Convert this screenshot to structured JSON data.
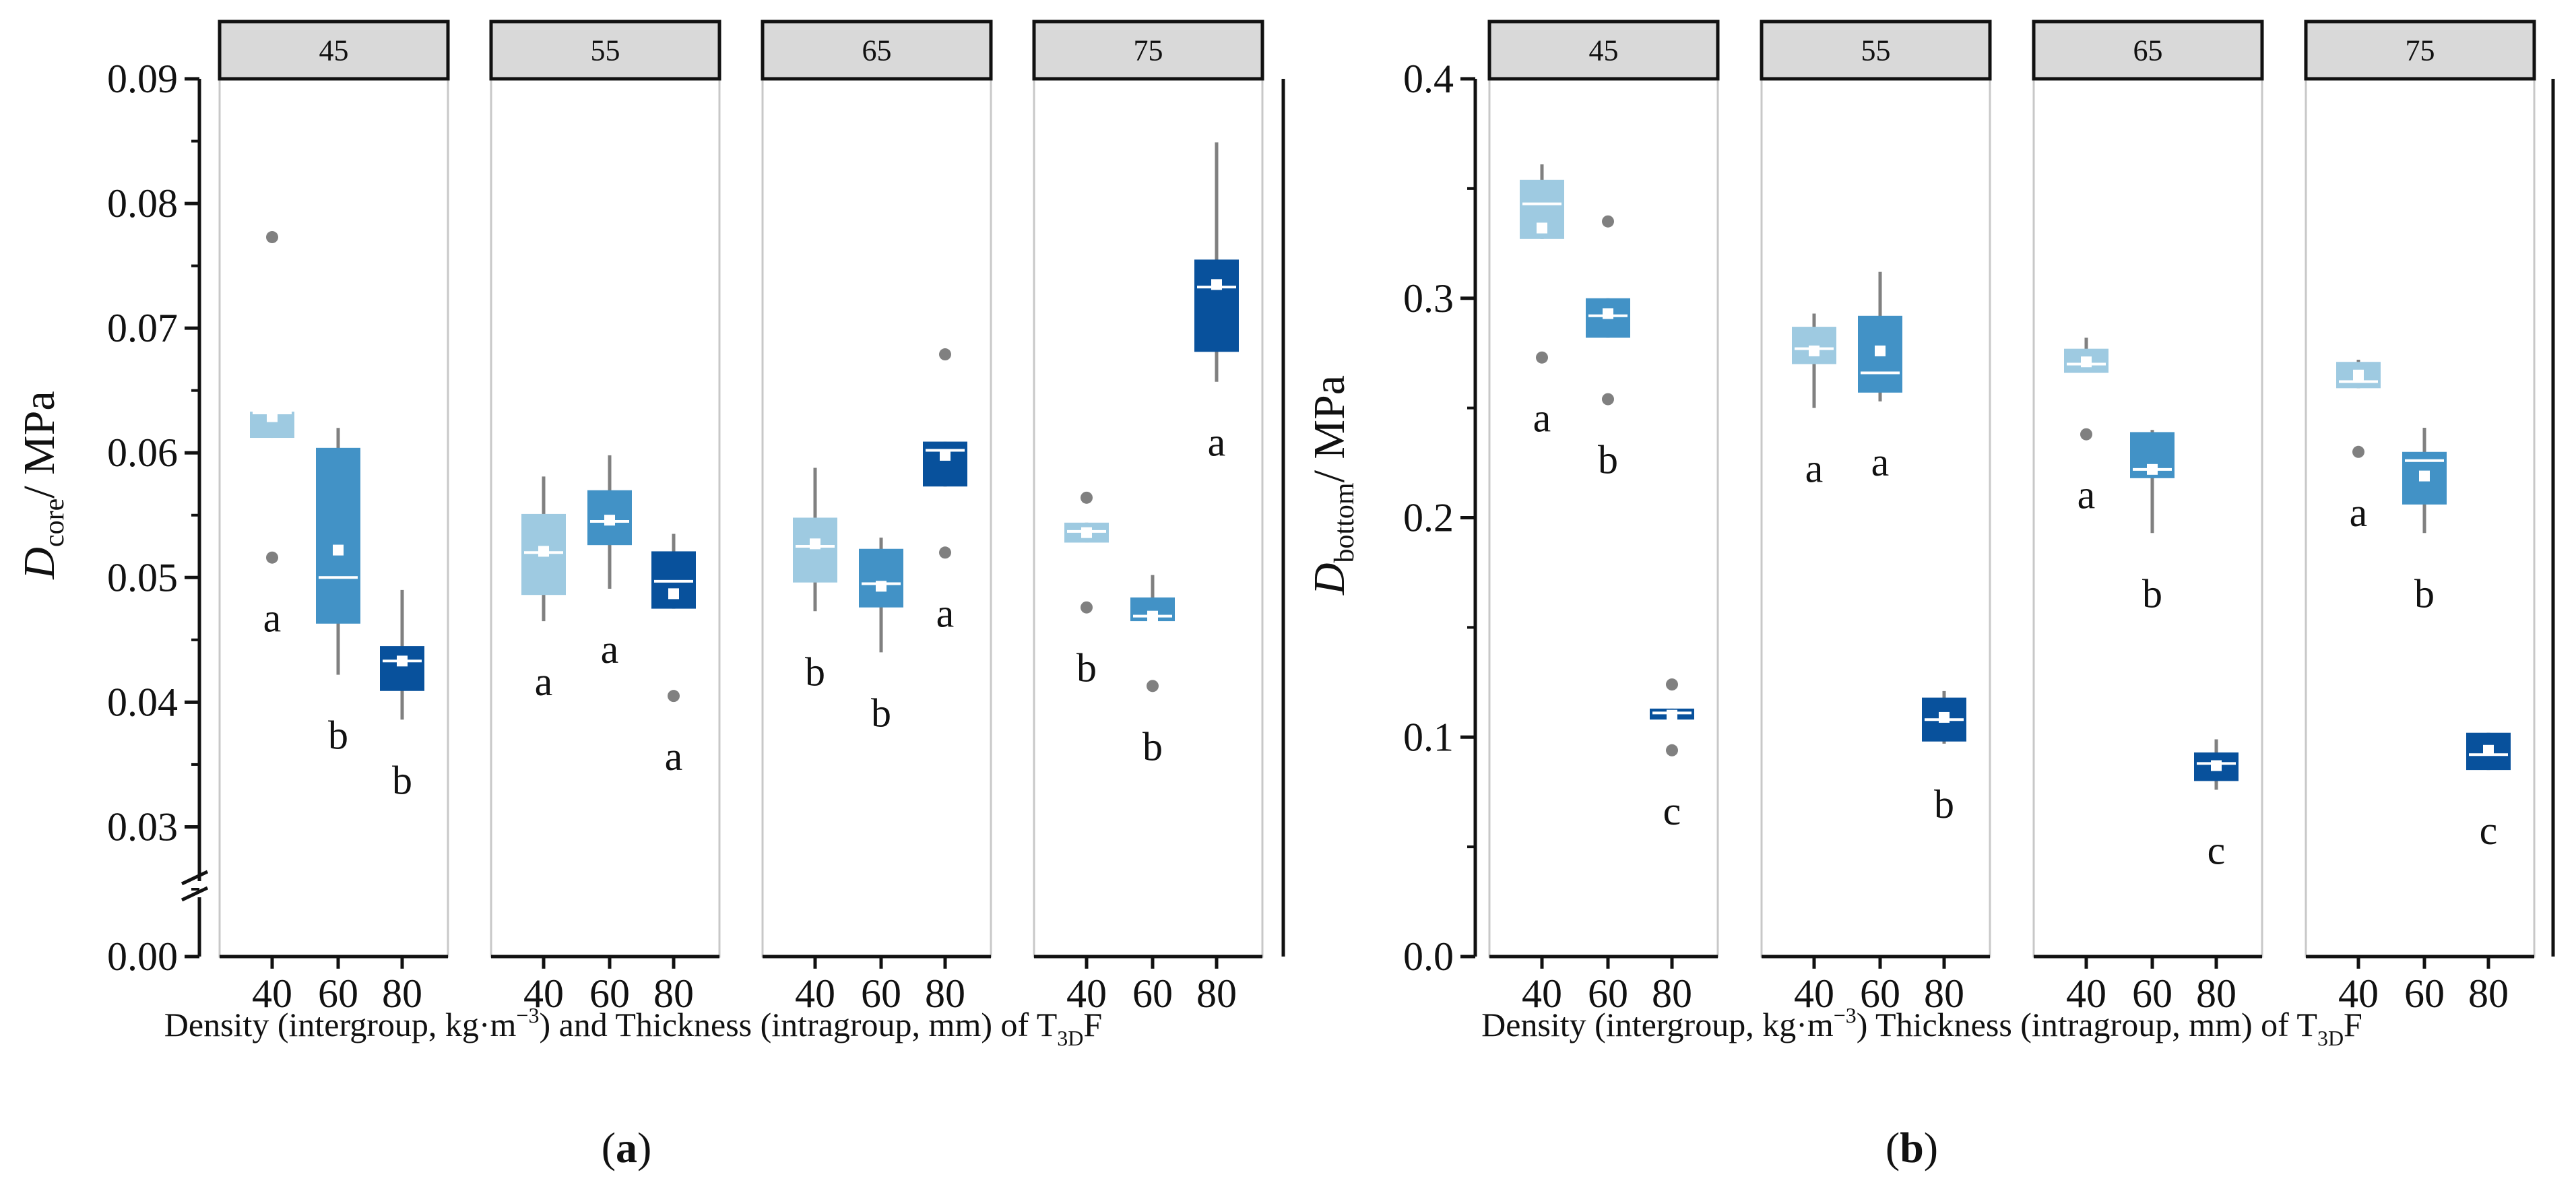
{
  "figure": {
    "panel_labels": [
      {
        "open": "(",
        "letter": "a",
        "close": ")"
      },
      {
        "open": "(",
        "letter": "b",
        "close": ")"
      }
    ]
  },
  "chart_data": [
    {
      "type": "box",
      "ylabel": {
        "main": "D",
        "sub": "core",
        "rest": "/ MPa"
      },
      "xlabel": {
        "pre": "Density (intergroup, kg·m",
        "sup": "−3",
        "mid": ") and Thickness (intragroup, mm) of T",
        "sub": "3D",
        "post": "F"
      },
      "ylim": [
        0.025,
        0.09
      ],
      "break_value": 0.0,
      "y_ticks": [
        0.03,
        0.04,
        0.05,
        0.06,
        0.07,
        0.08,
        0.09
      ],
      "y_tick_labels": [
        "0.03",
        "0.04",
        "0.05",
        "0.06",
        "0.07",
        "0.08",
        "0.09"
      ],
      "break_tick_label": "0.00",
      "facets": [
        "45",
        "55",
        "65",
        "75"
      ],
      "categories": [
        "40",
        "60",
        "80"
      ],
      "colors": [
        "#9ecae1",
        "#4292c6",
        "#08519c"
      ],
      "boxes": [
        [
          {
            "q1": 0.0612,
            "median": 0.0632,
            "q3": 0.0633,
            "mean": 0.0629,
            "wlo": 0.0612,
            "whi": 0.0633,
            "outliers": [
              0.0773,
              0.0516
            ],
            "label": "a"
          },
          {
            "q1": 0.0463,
            "median": 0.05,
            "q3": 0.0604,
            "mean": 0.0522,
            "wlo": 0.0422,
            "whi": 0.062,
            "outliers": [],
            "label": "b"
          },
          {
            "q1": 0.0409,
            "median": 0.0433,
            "q3": 0.0445,
            "mean": 0.0433,
            "wlo": 0.0386,
            "whi": 0.049,
            "outliers": [],
            "label": "b"
          }
        ],
        [
          {
            "q1": 0.0486,
            "median": 0.052,
            "q3": 0.0551,
            "mean": 0.0521,
            "wlo": 0.0465,
            "whi": 0.0581,
            "outliers": [],
            "label": "a"
          },
          {
            "q1": 0.0526,
            "median": 0.0545,
            "q3": 0.057,
            "mean": 0.0546,
            "wlo": 0.0491,
            "whi": 0.0598,
            "outliers": [],
            "label": "a"
          },
          {
            "q1": 0.0475,
            "median": 0.0497,
            "q3": 0.0521,
            "mean": 0.0487,
            "wlo": 0.0475,
            "whi": 0.0535,
            "outliers": [
              0.0405
            ],
            "label": "a"
          }
        ],
        [
          {
            "q1": 0.0496,
            "median": 0.0525,
            "q3": 0.0548,
            "mean": 0.0527,
            "wlo": 0.0473,
            "whi": 0.0588,
            "outliers": [],
            "label": "b"
          },
          {
            "q1": 0.0476,
            "median": 0.0495,
            "q3": 0.0523,
            "mean": 0.0493,
            "wlo": 0.044,
            "whi": 0.0532,
            "outliers": [],
            "label": "b"
          },
          {
            "q1": 0.0573,
            "median": 0.0602,
            "q3": 0.0609,
            "mean": 0.0598,
            "wlo": 0.0573,
            "whi": 0.0609,
            "outliers": [
              0.0679,
              0.052
            ],
            "label": "a"
          }
        ],
        [
          {
            "q1": 0.0528,
            "median": 0.0537,
            "q3": 0.0544,
            "mean": 0.0536,
            "wlo": 0.0528,
            "whi": 0.0544,
            "outliers": [
              0.0564,
              0.0476
            ],
            "label": "b"
          },
          {
            "q1": 0.0465,
            "median": 0.0469,
            "q3": 0.0484,
            "mean": 0.0469,
            "wlo": 0.0465,
            "whi": 0.0502,
            "outliers": [
              0.0413
            ],
            "label": "b"
          },
          {
            "q1": 0.0681,
            "median": 0.0733,
            "q3": 0.0755,
            "mean": 0.0735,
            "wlo": 0.0657,
            "whi": 0.0849,
            "outliers": [],
            "label": "a"
          }
        ]
      ]
    },
    {
      "type": "box",
      "ylabel": {
        "main": "D",
        "sub": "bottom",
        "rest": "/ MPa"
      },
      "xlabel": {
        "pre": "Density (intergroup, kg·m",
        "sup": "−3",
        "mid": ") Thickness (intragroup, mm) of T",
        "sub": "3D",
        "post": "F"
      },
      "ylim": [
        0,
        0.4
      ],
      "y_ticks": [
        0.0,
        0.1,
        0.2,
        0.3,
        0.4
      ],
      "y_tick_labels": [
        "0.0",
        "0.1",
        "0.2",
        "0.3",
        "0.4"
      ],
      "facets": [
        "45",
        "55",
        "65",
        "75"
      ],
      "categories": [
        "40",
        "60",
        "80"
      ],
      "colors": [
        "#9ecae1",
        "#4292c6",
        "#08519c"
      ],
      "boxes": [
        [
          {
            "q1": 0.327,
            "median": 0.343,
            "q3": 0.354,
            "mean": 0.332,
            "wlo": 0.327,
            "whi": 0.361,
            "outliers": [
              0.273
            ],
            "label": "a"
          },
          {
            "q1": 0.282,
            "median": 0.292,
            "q3": 0.3,
            "mean": 0.293,
            "wlo": 0.282,
            "whi": 0.3,
            "outliers": [
              0.335,
              0.254
            ],
            "label": "b"
          },
          {
            "q1": 0.108,
            "median": 0.111,
            "q3": 0.113,
            "mean": 0.11,
            "wlo": 0.108,
            "whi": 0.113,
            "outliers": [
              0.124,
              0.094
            ],
            "label": "c"
          }
        ],
        [
          {
            "q1": 0.27,
            "median": 0.277,
            "q3": 0.287,
            "mean": 0.276,
            "wlo": 0.25,
            "whi": 0.293,
            "outliers": [],
            "label": "a"
          },
          {
            "q1": 0.257,
            "median": 0.266,
            "q3": 0.292,
            "mean": 0.276,
            "wlo": 0.253,
            "whi": 0.312,
            "outliers": [],
            "label": "a"
          },
          {
            "q1": 0.098,
            "median": 0.108,
            "q3": 0.118,
            "mean": 0.109,
            "wlo": 0.097,
            "whi": 0.121,
            "outliers": [],
            "label": "b"
          }
        ],
        [
          {
            "q1": 0.266,
            "median": 0.27,
            "q3": 0.277,
            "mean": 0.271,
            "wlo": 0.266,
            "whi": 0.282,
            "outliers": [
              0.238
            ],
            "label": "a"
          },
          {
            "q1": 0.218,
            "median": 0.222,
            "q3": 0.239,
            "mean": 0.222,
            "wlo": 0.193,
            "whi": 0.24,
            "outliers": [],
            "label": "b"
          },
          {
            "q1": 0.08,
            "median": 0.088,
            "q3": 0.093,
            "mean": 0.087,
            "wlo": 0.076,
            "whi": 0.099,
            "outliers": [],
            "label": "c"
          }
        ],
        [
          {
            "q1": 0.259,
            "median": 0.262,
            "q3": 0.271,
            "mean": 0.265,
            "wlo": 0.259,
            "whi": 0.272,
            "outliers": [
              0.23
            ],
            "label": "a"
          },
          {
            "q1": 0.206,
            "median": 0.226,
            "q3": 0.23,
            "mean": 0.219,
            "wlo": 0.193,
            "whi": 0.241,
            "outliers": [],
            "label": "b"
          },
          {
            "q1": 0.085,
            "median": 0.092,
            "q3": 0.102,
            "mean": 0.094,
            "wlo": 0.085,
            "whi": 0.102,
            "outliers": [],
            "label": "c"
          }
        ]
      ]
    }
  ]
}
